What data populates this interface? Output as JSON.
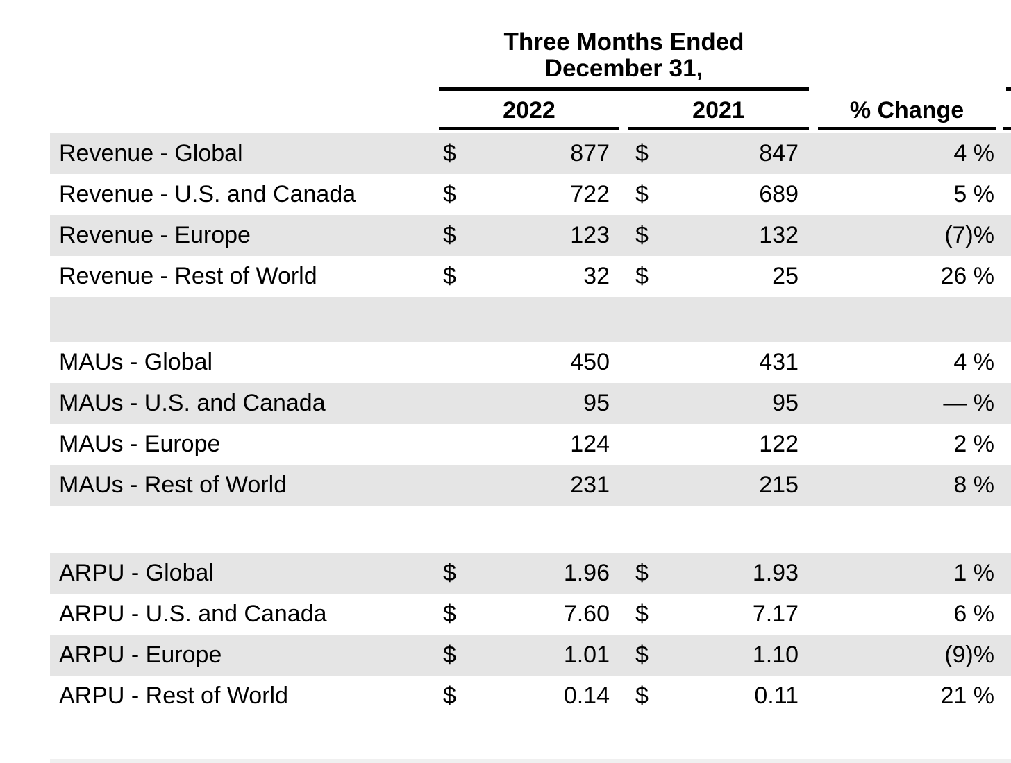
{
  "header": {
    "period_line1": "Three Months Ended",
    "period_line2": "December 31,",
    "col_2022": "2022",
    "col_2021": "2021",
    "col_change": "% Change"
  },
  "rows": [
    {
      "label": "Revenue - Global",
      "cur1": "$",
      "v2022": "877",
      "cur2": "$",
      "v2021": "847",
      "change": "4 %"
    },
    {
      "label": "Revenue - U.S. and Canada",
      "cur1": "$",
      "v2022": "722",
      "cur2": "$",
      "v2021": "689",
      "change": "5 %"
    },
    {
      "label": "Revenue - Europe",
      "cur1": "$",
      "v2022": "123",
      "cur2": "$",
      "v2021": "132",
      "change": "(7)%"
    },
    {
      "label": "Revenue - Rest of World",
      "cur1": "$",
      "v2022": "32",
      "cur2": "$",
      "v2021": "25",
      "change": "26 %"
    },
    {
      "separator": true
    },
    {
      "label": "MAUs - Global",
      "cur1": "",
      "v2022": "450",
      "cur2": "",
      "v2021": "431",
      "change": "4 %"
    },
    {
      "label": "MAUs - U.S. and Canada",
      "cur1": "",
      "v2022": "95",
      "cur2": "",
      "v2021": "95",
      "change": "— %"
    },
    {
      "label": "MAUs - Europe",
      "cur1": "",
      "v2022": "124",
      "cur2": "",
      "v2021": "122",
      "change": "2 %"
    },
    {
      "label": "MAUs - Rest of World",
      "cur1": "",
      "v2022": "231",
      "cur2": "",
      "v2021": "215",
      "change": "8 %"
    },
    {
      "separator": true
    },
    {
      "label": "ARPU - Global",
      "cur1": "$",
      "v2022": "1.96",
      "cur2": "$",
      "v2021": "1.93",
      "change": "1 %"
    },
    {
      "label": "ARPU - U.S. and Canada",
      "cur1": "$",
      "v2022": "7.60",
      "cur2": "$",
      "v2021": "7.17",
      "change": "6 %"
    },
    {
      "label": "ARPU - Europe",
      "cur1": "$",
      "v2022": "1.01",
      "cur2": "$",
      "v2021": "1.10",
      "change": "(9)%"
    },
    {
      "label": "ARPU - Rest of World",
      "cur1": "$",
      "v2022": "0.14",
      "cur2": "$",
      "v2021": "0.11",
      "change": "21 %"
    }
  ],
  "colors": {
    "row_stripe": "#e5e5e5",
    "rule_black": "#000000"
  }
}
